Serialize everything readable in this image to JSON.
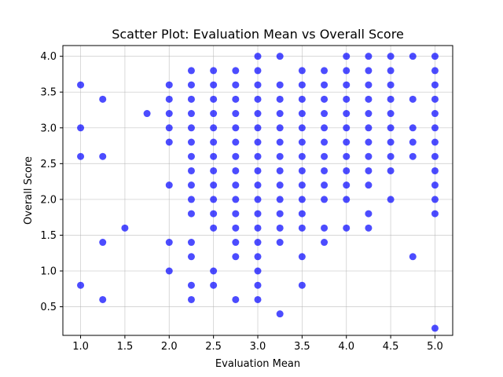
{
  "chart_data": {
    "type": "scatter",
    "title": "Scatter Plot: Evaluation Mean vs Overall Score",
    "xlabel": "Evaluation Mean",
    "ylabel": "Overall Score",
    "xlim": [
      0.8,
      5.2
    ],
    "ylim": [
      0.1,
      4.15
    ],
    "xticks": [
      "1.0",
      "1.5",
      "2.0",
      "2.5",
      "3.0",
      "3.5",
      "4.0",
      "4.5",
      "5.0"
    ],
    "yticks": [
      "0.5",
      "1.0",
      "1.5",
      "2.0",
      "2.5",
      "3.0",
      "3.5",
      "4.0"
    ],
    "grid": true,
    "marker_color": "#0000ff",
    "marker_alpha": 0.7,
    "points": [
      [
        1.0,
        3.6
      ],
      [
        1.0,
        3.0
      ],
      [
        1.0,
        2.6
      ],
      [
        1.0,
        0.8
      ],
      [
        1.25,
        3.4
      ],
      [
        1.25,
        2.6
      ],
      [
        1.25,
        1.4
      ],
      [
        1.25,
        0.6
      ],
      [
        1.5,
        1.6
      ],
      [
        1.75,
        3.2
      ],
      [
        2.0,
        3.6
      ],
      [
        2.0,
        3.4
      ],
      [
        2.0,
        3.2
      ],
      [
        2.0,
        3.0
      ],
      [
        2.0,
        2.8
      ],
      [
        2.0,
        2.2
      ],
      [
        2.0,
        1.4
      ],
      [
        2.0,
        1.0
      ],
      [
        2.25,
        3.8
      ],
      [
        2.25,
        3.6
      ],
      [
        2.25,
        3.4
      ],
      [
        2.25,
        3.2
      ],
      [
        2.25,
        3.0
      ],
      [
        2.25,
        2.8
      ],
      [
        2.25,
        2.6
      ],
      [
        2.25,
        2.4
      ],
      [
        2.25,
        2.2
      ],
      [
        2.25,
        2.0
      ],
      [
        2.25,
        1.8
      ],
      [
        2.25,
        1.4
      ],
      [
        2.25,
        1.2
      ],
      [
        2.25,
        0.8
      ],
      [
        2.25,
        0.6
      ],
      [
        2.5,
        3.8
      ],
      [
        2.5,
        3.6
      ],
      [
        2.5,
        3.4
      ],
      [
        2.5,
        3.2
      ],
      [
        2.5,
        3.0
      ],
      [
        2.5,
        2.8
      ],
      [
        2.5,
        2.6
      ],
      [
        2.5,
        2.4
      ],
      [
        2.5,
        2.2
      ],
      [
        2.5,
        2.0
      ],
      [
        2.5,
        1.8
      ],
      [
        2.5,
        1.6
      ],
      [
        2.5,
        1.0
      ],
      [
        2.5,
        0.8
      ],
      [
        2.75,
        3.8
      ],
      [
        2.75,
        3.6
      ],
      [
        2.75,
        3.4
      ],
      [
        2.75,
        3.2
      ],
      [
        2.75,
        3.0
      ],
      [
        2.75,
        2.8
      ],
      [
        2.75,
        2.6
      ],
      [
        2.75,
        2.4
      ],
      [
        2.75,
        2.2
      ],
      [
        2.75,
        2.0
      ],
      [
        2.75,
        1.8
      ],
      [
        2.75,
        1.6
      ],
      [
        2.75,
        1.4
      ],
      [
        2.75,
        1.2
      ],
      [
        2.75,
        0.6
      ],
      [
        3.0,
        4.0
      ],
      [
        3.0,
        3.8
      ],
      [
        3.0,
        3.6
      ],
      [
        3.0,
        3.4
      ],
      [
        3.0,
        3.2
      ],
      [
        3.0,
        3.0
      ],
      [
        3.0,
        2.8
      ],
      [
        3.0,
        2.6
      ],
      [
        3.0,
        2.4
      ],
      [
        3.0,
        2.2
      ],
      [
        3.0,
        2.0
      ],
      [
        3.0,
        1.8
      ],
      [
        3.0,
        1.6
      ],
      [
        3.0,
        1.4
      ],
      [
        3.0,
        1.2
      ],
      [
        3.0,
        1.0
      ],
      [
        3.0,
        0.8
      ],
      [
        3.0,
        0.6
      ],
      [
        3.25,
        4.0
      ],
      [
        3.25,
        3.6
      ],
      [
        3.25,
        3.4
      ],
      [
        3.25,
        3.2
      ],
      [
        3.25,
        3.0
      ],
      [
        3.25,
        2.8
      ],
      [
        3.25,
        2.6
      ],
      [
        3.25,
        2.4
      ],
      [
        3.25,
        2.2
      ],
      [
        3.25,
        2.0
      ],
      [
        3.25,
        1.8
      ],
      [
        3.25,
        1.6
      ],
      [
        3.25,
        1.4
      ],
      [
        3.25,
        0.4
      ],
      [
        3.5,
        3.8
      ],
      [
        3.5,
        3.6
      ],
      [
        3.5,
        3.4
      ],
      [
        3.5,
        3.2
      ],
      [
        3.5,
        3.0
      ],
      [
        3.5,
        2.8
      ],
      [
        3.5,
        2.6
      ],
      [
        3.5,
        2.4
      ],
      [
        3.5,
        2.2
      ],
      [
        3.5,
        2.0
      ],
      [
        3.5,
        1.8
      ],
      [
        3.5,
        1.6
      ],
      [
        3.5,
        1.2
      ],
      [
        3.5,
        0.8
      ],
      [
        3.75,
        3.8
      ],
      [
        3.75,
        3.6
      ],
      [
        3.75,
        3.4
      ],
      [
        3.75,
        3.2
      ],
      [
        3.75,
        3.0
      ],
      [
        3.75,
        2.8
      ],
      [
        3.75,
        2.6
      ],
      [
        3.75,
        2.4
      ],
      [
        3.75,
        2.2
      ],
      [
        3.75,
        2.0
      ],
      [
        3.75,
        1.6
      ],
      [
        3.75,
        1.4
      ],
      [
        4.0,
        4.0
      ],
      [
        4.0,
        3.8
      ],
      [
        4.0,
        3.6
      ],
      [
        4.0,
        3.4
      ],
      [
        4.0,
        3.2
      ],
      [
        4.0,
        3.0
      ],
      [
        4.0,
        2.8
      ],
      [
        4.0,
        2.6
      ],
      [
        4.0,
        2.4
      ],
      [
        4.0,
        2.2
      ],
      [
        4.0,
        2.0
      ],
      [
        4.0,
        1.6
      ],
      [
        4.25,
        4.0
      ],
      [
        4.25,
        3.8
      ],
      [
        4.25,
        3.6
      ],
      [
        4.25,
        3.4
      ],
      [
        4.25,
        3.2
      ],
      [
        4.25,
        3.0
      ],
      [
        4.25,
        2.8
      ],
      [
        4.25,
        2.6
      ],
      [
        4.25,
        2.4
      ],
      [
        4.25,
        2.2
      ],
      [
        4.25,
        1.8
      ],
      [
        4.25,
        1.6
      ],
      [
        4.5,
        4.0
      ],
      [
        4.5,
        3.8
      ],
      [
        4.5,
        3.6
      ],
      [
        4.5,
        3.4
      ],
      [
        4.5,
        3.2
      ],
      [
        4.5,
        3.0
      ],
      [
        4.5,
        2.8
      ],
      [
        4.5,
        2.6
      ],
      [
        4.5,
        2.4
      ],
      [
        4.5,
        2.0
      ],
      [
        4.75,
        4.0
      ],
      [
        4.75,
        3.4
      ],
      [
        4.75,
        3.0
      ],
      [
        4.75,
        2.8
      ],
      [
        4.75,
        2.6
      ],
      [
        4.75,
        1.2
      ],
      [
        5.0,
        4.0
      ],
      [
        5.0,
        3.8
      ],
      [
        5.0,
        3.6
      ],
      [
        5.0,
        3.4
      ],
      [
        5.0,
        3.2
      ],
      [
        5.0,
        3.0
      ],
      [
        5.0,
        2.8
      ],
      [
        5.0,
        2.6
      ],
      [
        5.0,
        2.4
      ],
      [
        5.0,
        2.2
      ],
      [
        5.0,
        2.0
      ],
      [
        5.0,
        1.8
      ],
      [
        5.0,
        0.2
      ]
    ]
  }
}
